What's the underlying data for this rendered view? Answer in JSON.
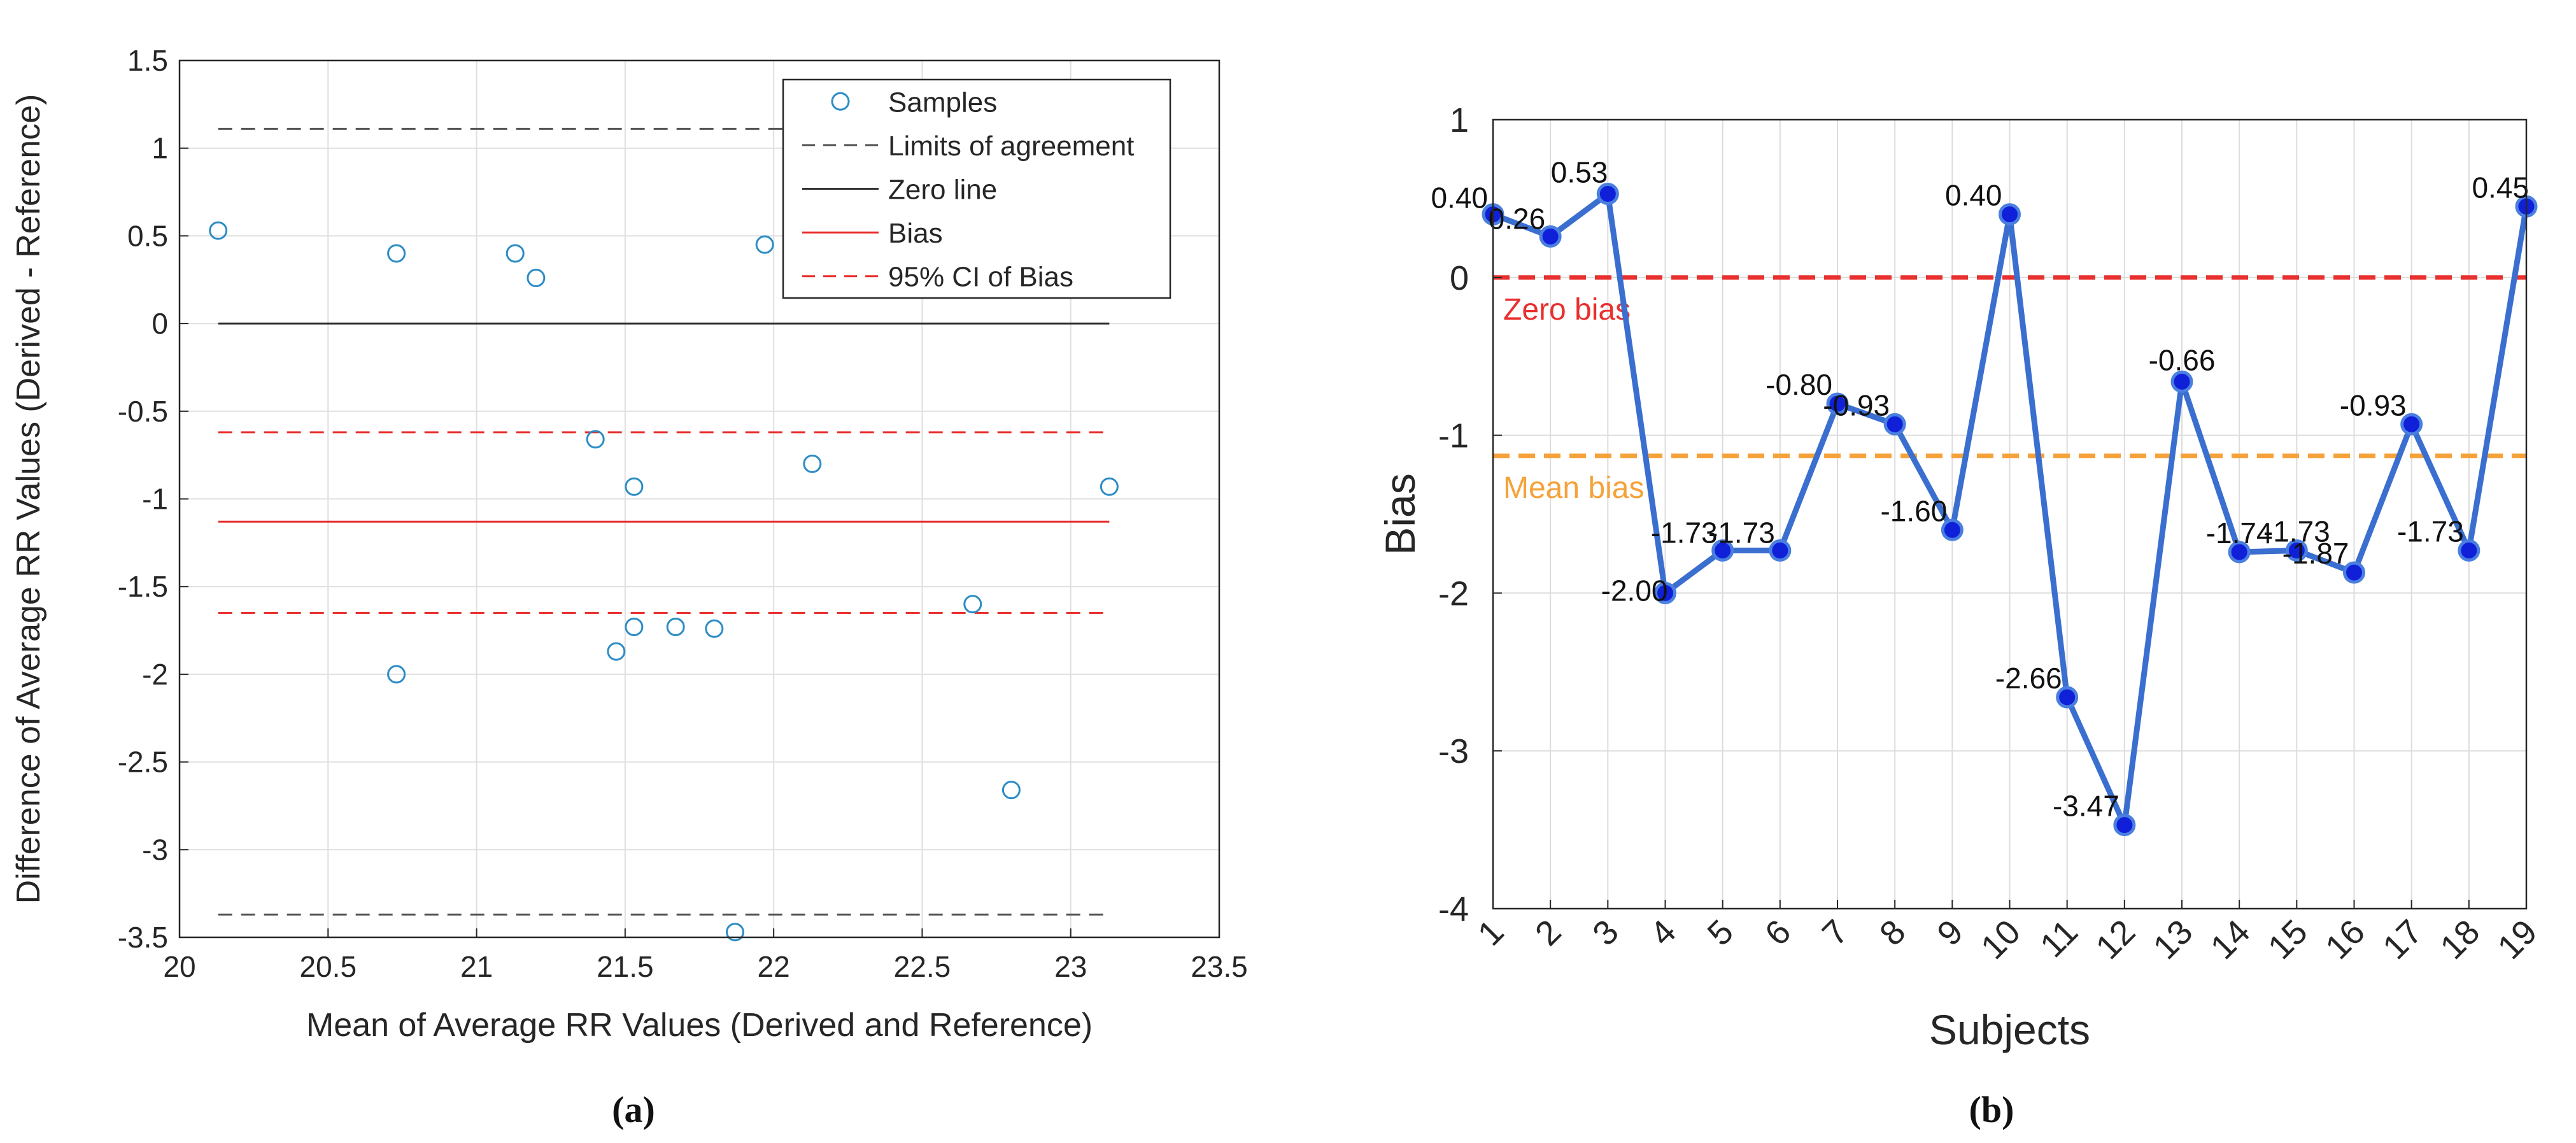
{
  "chart_data": [
    {
      "type": "scatter",
      "panel_label": "(a)",
      "title": "",
      "xlabel": "Mean of Average RR Values (Derived and Reference)",
      "ylabel": "Difference of Average RR Values (Derived - Reference)",
      "xlim": [
        20,
        23.5
      ],
      "ylim": [
        -3.5,
        1.5
      ],
      "xticks": [
        "20",
        "20.5",
        "21",
        "21.5",
        "22",
        "22.5",
        "23",
        "23.5"
      ],
      "yticks": [
        "1.5",
        "1",
        "0.5",
        "0",
        "-0.5",
        "-1",
        "-1.5",
        "-2",
        "-2.5",
        "-3",
        "-3.5"
      ],
      "grid": true,
      "legend_position": "top-right",
      "legend": [
        "Samples",
        "Limits of agreement",
        "Zero line",
        "Bias",
        "95% CI of Bias"
      ],
      "points": [
        {
          "x": 20.13,
          "y": 0.53
        },
        {
          "x": 20.73,
          "y": 0.4
        },
        {
          "x": 20.73,
          "y": -2.0
        },
        {
          "x": 21.13,
          "y": 0.4
        },
        {
          "x": 21.2,
          "y": 0.26
        },
        {
          "x": 21.4,
          "y": -0.66
        },
        {
          "x": 21.47,
          "y": -1.87
        },
        {
          "x": 21.53,
          "y": -0.93
        },
        {
          "x": 21.53,
          "y": -1.73
        },
        {
          "x": 21.67,
          "y": -1.73
        },
        {
          "x": 21.8,
          "y": -1.74
        },
        {
          "x": 21.87,
          "y": -3.47
        },
        {
          "x": 21.97,
          "y": 0.45
        },
        {
          "x": 22.13,
          "y": -0.8
        },
        {
          "x": 22.67,
          "y": -1.6
        },
        {
          "x": 22.8,
          "y": -2.66
        },
        {
          "x": 23.13,
          "y": -0.93
        }
      ],
      "x_range": [
        20.13,
        23.13
      ],
      "limits_of_agreement": [
        1.11,
        -3.37
      ],
      "zero_line": 0,
      "bias": -1.13,
      "ci_of_bias": [
        -0.62,
        -1.65
      ],
      "colors": {
        "samples": "#2b8cc4",
        "limits": "#555555",
        "zero": "#333333",
        "bias": "#e8302e",
        "ci": "#e8302e"
      }
    },
    {
      "type": "line",
      "panel_label": "(b)",
      "title": "",
      "xlabel": "Subjects",
      "ylabel": "Bias",
      "xlim": [
        1,
        19
      ],
      "ylim": [
        -4,
        1
      ],
      "categories": [
        "1",
        "2",
        "3",
        "4",
        "5",
        "6",
        "7",
        "8",
        "9",
        "10",
        "11",
        "12",
        "13",
        "14",
        "15",
        "16",
        "17",
        "18",
        "19"
      ],
      "yticks": [
        "1",
        "0",
        "-1",
        "-2",
        "-3",
        "-4"
      ],
      "grid": true,
      "series": [
        {
          "name": "Bias",
          "values": [
            0.4,
            0.26,
            0.53,
            -2.0,
            -1.73,
            -1.73,
            -0.8,
            -0.93,
            -1.6,
            0.4,
            -2.66,
            -3.47,
            -0.66,
            -1.74,
            -1.73,
            -1.87,
            -0.93,
            -1.73,
            0.45
          ],
          "labels": [
            "0.40",
            "0.26",
            "0.53",
            "-2.00",
            "-1.73",
            "-1.73",
            "-0.80",
            "-0.93",
            "-1.60",
            "0.40",
            "-2.66",
            "-3.47",
            "-0.66",
            "-1.74",
            "-1.73",
            "-1.87",
            "-0.93",
            "-1.73",
            "0.45"
          ]
        }
      ],
      "reference_lines": [
        {
          "name": "Zero bias",
          "label": "Zero bias",
          "y": 0,
          "color": "#e8302e"
        },
        {
          "name": "Mean bias",
          "label": "Mean bias",
          "y": -1.13,
          "color": "#f5a23a"
        }
      ],
      "colors": {
        "line": "#3a6fd0",
        "marker": "#1020d8"
      }
    }
  ]
}
